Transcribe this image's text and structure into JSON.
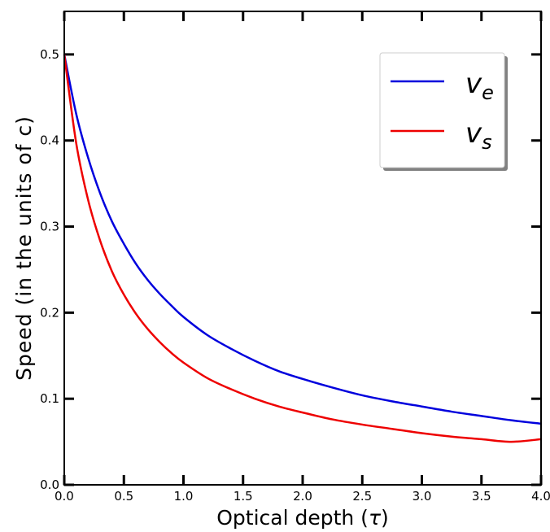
{
  "chart_data": {
    "type": "line",
    "title": "",
    "xlabel_prefix": "Optical depth (",
    "xlabel_symbol": "τ",
    "xlabel_suffix": ")",
    "ylabel": "Speed (in the units of c)",
    "xlim": [
      0,
      4
    ],
    "ylim": [
      0,
      0.55
    ],
    "xticks": [
      "0.0",
      "0.5",
      "1.0",
      "1.5",
      "2.0",
      "2.5",
      "3.0",
      "3.5",
      "4.0"
    ],
    "yticks": [
      "0.0",
      "0.1",
      "0.2",
      "0.3",
      "0.4",
      "0.5"
    ],
    "grid": false,
    "legend_position": "top-right",
    "x": [
      0,
      0.1,
      0.2,
      0.3,
      0.4,
      0.5,
      0.6,
      0.7,
      0.8,
      0.9,
      1.0,
      1.2,
      1.4,
      1.6,
      1.8,
      2.0,
      2.25,
      2.5,
      2.75,
      3.0,
      3.25,
      3.5,
      3.75,
      4.0
    ],
    "series": [
      {
        "name_base": "v",
        "name_sub": "e",
        "color": "#0000dd",
        "values": [
          0.5,
          0.431,
          0.38,
          0.339,
          0.306,
          0.28,
          0.257,
          0.238,
          0.222,
          0.208,
          0.195,
          0.174,
          0.158,
          0.144,
          0.132,
          0.123,
          0.113,
          0.104,
          0.097,
          0.091,
          0.085,
          0.08,
          0.075,
          0.071
        ]
      },
      {
        "name_base": "v",
        "name_sub": "s",
        "color": "#ee0000",
        "values": [
          0.5,
          0.397,
          0.331,
          0.284,
          0.248,
          0.221,
          0.199,
          0.181,
          0.166,
          0.153,
          0.142,
          0.124,
          0.111,
          0.1,
          0.091,
          0.084,
          0.076,
          0.07,
          0.065,
          0.06,
          0.056,
          0.053,
          0.05,
          0.053
        ]
      }
    ]
  }
}
